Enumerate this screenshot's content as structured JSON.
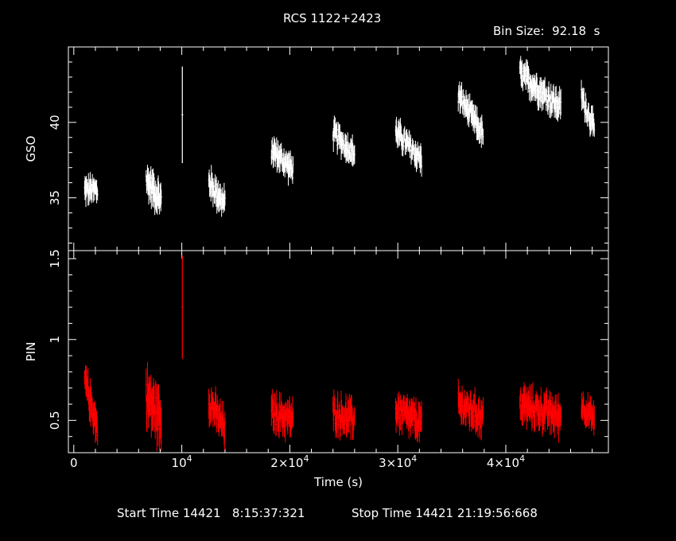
{
  "header": {
    "title": "RCS 1122+2423",
    "bin_size": "Bin Size:  92.18  s"
  },
  "footer": {
    "start_time": "Start Time 14421   8:15:37:321",
    "stop_time": "Stop Time 14421 21:19:56:668"
  },
  "chart_data": [
    {
      "type": "scatter",
      "style": "error-bar light curve",
      "panel": "top",
      "ylabel": "GSO",
      "xlim": [
        -500,
        49500
      ],
      "ylim": [
        31.5,
        45
      ],
      "yticks": [
        35,
        40
      ],
      "ytick_labels": [
        "35",
        "40"
      ],
      "color": "#ffffff",
      "segments": [
        {
          "x": [
            1000,
            2200
          ],
          "y": [
            35.5,
            35.5
          ],
          "err": 0.8
        },
        {
          "x": [
            6700,
            8100
          ],
          "y": [
            36.2,
            34.8
          ],
          "err": 1.0
        },
        {
          "x": [
            10050,
            10050
          ],
          "y": [
            40.5,
            40.5
          ],
          "err": 3.2
        },
        {
          "x": [
            12500,
            14000
          ],
          "y": [
            36.1,
            34.5
          ],
          "err": 0.9
        },
        {
          "x": [
            18300,
            20300
          ],
          "y": [
            38.2,
            36.8
          ],
          "err": 0.8
        },
        {
          "x": [
            24000,
            26000
          ],
          "y": [
            39.3,
            37.9
          ],
          "err": 0.8
        },
        {
          "x": [
            29800,
            32200
          ],
          "y": [
            39.4,
            37.5
          ],
          "err": 0.8
        },
        {
          "x": [
            35600,
            37900
          ],
          "y": [
            41.8,
            39.2
          ],
          "err": 0.8
        },
        {
          "x": [
            41300,
            45100
          ],
          "y": [
            43.2,
            41.0
          ],
          "err": 0.9
        },
        {
          "x": [
            47000,
            48200
          ],
          "y": [
            41.8,
            39.5
          ],
          "err": 0.8
        }
      ]
    },
    {
      "type": "scatter",
      "style": "error-bar light curve",
      "panel": "bottom",
      "ylabel": "PIN",
      "xlabel": "Time (s)",
      "xlim": [
        -500,
        49500
      ],
      "ylim": [
        0.3,
        1.55
      ],
      "yticks": [
        0.5,
        1,
        1.5
      ],
      "ytick_labels": [
        "0.5",
        "1",
        "1.5"
      ],
      "xticks": [
        0,
        10000,
        20000,
        30000,
        40000
      ],
      "xtick_labels": [
        {
          "mant": "0",
          "exp": ""
        },
        {
          "mant": "10",
          "exp": "4"
        },
        {
          "mant": "2×10",
          "exp": "4"
        },
        {
          "mant": "3×10",
          "exp": "4"
        },
        {
          "mant": "4×10",
          "exp": "4"
        }
      ],
      "color": "#ff0000",
      "segments": [
        {
          "x": [
            1000,
            2200
          ],
          "y": [
            0.75,
            0.45
          ],
          "err": 0.1
        },
        {
          "x": [
            6700,
            8100
          ],
          "y": [
            0.65,
            0.5
          ],
          "err": 0.15
        },
        {
          "x": [
            10050,
            10050
          ],
          "y": [
            1.2,
            1.2
          ],
          "err": 0.32
        },
        {
          "x": [
            12500,
            14000
          ],
          "y": [
            0.62,
            0.45
          ],
          "err": 0.1
        },
        {
          "x": [
            18300,
            20300
          ],
          "y": [
            0.55,
            0.5
          ],
          "err": 0.1
        },
        {
          "x": [
            24000,
            26000
          ],
          "y": [
            0.55,
            0.5
          ],
          "err": 0.1
        },
        {
          "x": [
            29800,
            32200
          ],
          "y": [
            0.56,
            0.48
          ],
          "err": 0.1
        },
        {
          "x": [
            35600,
            37900
          ],
          "y": [
            0.6,
            0.52
          ],
          "err": 0.1
        },
        {
          "x": [
            41300,
            45100
          ],
          "y": [
            0.6,
            0.52
          ],
          "err": 0.1
        },
        {
          "x": [
            47000,
            48200
          ],
          "y": [
            0.6,
            0.5
          ],
          "err": 0.08
        }
      ]
    }
  ]
}
